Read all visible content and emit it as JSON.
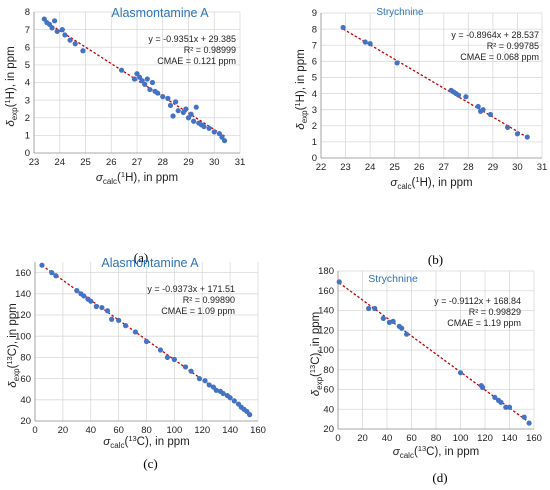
{
  "chart_data": [
    {
      "type": "scatter",
      "panel": "a",
      "title": "Alasmontamine A",
      "caption": "(a)",
      "xlabel": "σcalc(1H), in ppm",
      "ylabel": "δexp(1H), in ppm",
      "xlim": [
        23,
        31
      ],
      "ylim": [
        0,
        8
      ],
      "xticks": [
        23,
        24,
        25,
        26,
        27,
        28,
        29,
        30,
        31
      ],
      "yticks": [
        0,
        1,
        2,
        3,
        4,
        5,
        6,
        7,
        8
      ],
      "grid": true,
      "trendline": {
        "slope": -0.9351,
        "intercept": 29.385
      },
      "annotations": [
        "y = -0.9351x + 29.385",
        "R² = 0.98999",
        "CMAE = 0.121 ppm"
      ],
      "x": [
        23.4,
        23.5,
        23.6,
        23.7,
        23.8,
        23.9,
        24.1,
        24.2,
        24.4,
        24.6,
        24.9,
        26.4,
        26.9,
        27.0,
        27.1,
        27.2,
        27.3,
        27.4,
        27.5,
        27.6,
        27.7,
        27.8,
        28.0,
        28.2,
        28.3,
        28.4,
        28.5,
        28.6,
        28.8,
        28.9,
        29.0,
        29.1,
        29.2,
        29.3,
        29.4,
        29.5,
        29.6,
        29.8,
        30.0,
        30.2,
        30.3,
        30.4
      ],
      "y": [
        7.6,
        7.4,
        7.3,
        7.1,
        7.5,
        6.9,
        7.0,
        6.7,
        6.4,
        6.2,
        5.8,
        4.7,
        4.2,
        4.5,
        4.3,
        4.1,
        3.9,
        4.2,
        3.6,
        4.0,
        3.5,
        3.4,
        3.2,
        3.1,
        2.7,
        2.1,
        2.9,
        2.4,
        2.3,
        2.5,
        2.0,
        2.2,
        1.8,
        2.6,
        1.7,
        1.6,
        1.5,
        1.4,
        1.2,
        1.1,
        0.9,
        0.7
      ]
    },
    {
      "type": "scatter",
      "panel": "b",
      "title": "Strychnine",
      "caption": "(b)",
      "xlabel": "σcalc(1H), in ppm",
      "ylabel": "δexp(1H), in ppm",
      "xlim": [
        22,
        31
      ],
      "ylim": [
        0,
        9
      ],
      "xticks": [
        22,
        23,
        24,
        25,
        26,
        27,
        28,
        29,
        30,
        31
      ],
      "yticks": [
        0,
        1,
        2,
        3,
        4,
        5,
        6,
        7,
        8,
        9
      ],
      "grid": true,
      "trendline": {
        "slope": -0.8964,
        "intercept": 28.537
      },
      "annotations": [
        "y = -0.8964x + 28.537",
        "R² = 0.99785",
        "CMAE = 0.068 ppm"
      ],
      "x": [
        22.9,
        23.8,
        24.0,
        25.1,
        27.3,
        27.4,
        27.5,
        27.6,
        27.9,
        28.4,
        28.5,
        28.6,
        28.9,
        29.6,
        30.0,
        30.4
      ],
      "y": [
        8.1,
        7.2,
        7.1,
        5.9,
        4.2,
        4.1,
        4.0,
        3.9,
        3.8,
        3.2,
        2.9,
        3.0,
        2.7,
        1.9,
        1.5,
        1.3
      ]
    },
    {
      "type": "scatter",
      "panel": "c",
      "title": "Alasmontamine A",
      "caption": "(c)",
      "xlabel": "σcalc(13C), in ppm",
      "ylabel": "δexp(13C), in ppm",
      "xlim": [
        0,
        160
      ],
      "ylim": [
        20,
        170
      ],
      "xticks": [
        0,
        20,
        40,
        60,
        80,
        100,
        120,
        140,
        160
      ],
      "yticks": [
        20,
        40,
        60,
        80,
        100,
        120,
        140,
        160
      ],
      "grid": true,
      "trendline": {
        "slope": -0.9373,
        "intercept": 171.51
      },
      "annotations": [
        "y = -0.9373x + 171.51",
        "R² = 0.99890",
        "CMAE = 1.09 ppm"
      ],
      "x": [
        5,
        12,
        15,
        30,
        33,
        35,
        38,
        40,
        44,
        48,
        52,
        55,
        60,
        65,
        72,
        80,
        90,
        95,
        100,
        108,
        112,
        118,
        122,
        125,
        128,
        130,
        133,
        135,
        138,
        140,
        143,
        146,
        148,
        150,
        152,
        154
      ],
      "y": [
        167,
        160,
        157,
        143,
        140,
        138,
        135,
        133,
        128,
        127,
        124,
        116,
        115,
        110,
        104,
        95,
        87,
        80,
        78,
        71,
        67,
        60,
        58,
        54,
        52,
        49,
        48,
        46,
        44,
        42,
        39,
        36,
        33,
        31,
        29,
        26
      ]
    },
    {
      "type": "scatter",
      "panel": "d",
      "title": "Strychnine",
      "caption": "(d)",
      "xlabel": "σcalc(13C), in ppm",
      "ylabel": "δexp(13C), in ppm",
      "xlim": [
        0,
        160
      ],
      "ylim": [
        20,
        180
      ],
      "xticks": [
        0,
        20,
        40,
        60,
        80,
        100,
        120,
        140,
        160
      ],
      "yticks": [
        20,
        40,
        60,
        80,
        100,
        120,
        140,
        160,
        180
      ],
      "grid": true,
      "trendline": {
        "slope": -0.9112,
        "intercept": 168.84
      },
      "annotations": [
        "y = -0.9112x + 168.84",
        "R² = 0.99829",
        "CMAE = 1.19 ppm"
      ],
      "x": [
        1,
        25,
        30,
        37,
        42,
        45,
        50,
        52,
        56,
        100,
        117,
        118,
        128,
        131,
        133,
        137,
        140,
        152,
        156
      ],
      "y": [
        169,
        142,
        142,
        132,
        128,
        129,
        124,
        122,
        116,
        77,
        64,
        62,
        52,
        49,
        47,
        42,
        42,
        32,
        26
      ]
    }
  ]
}
